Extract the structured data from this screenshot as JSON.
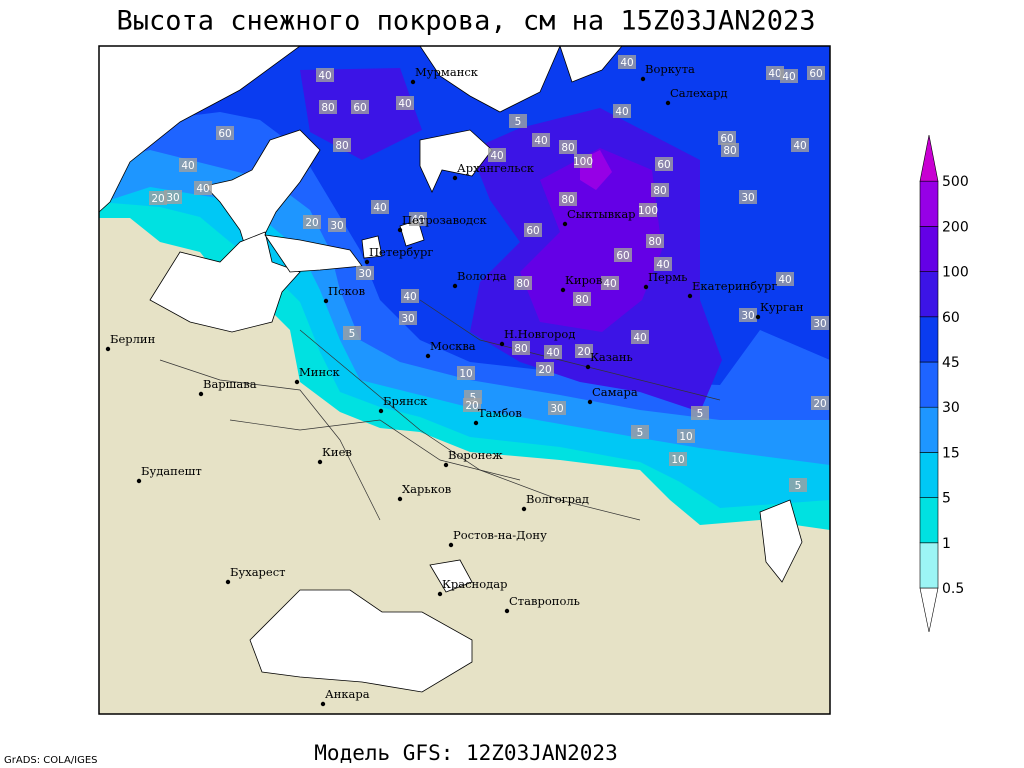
{
  "header": {
    "title": "Высота снежного покрова, см на 15Z03JAN2023"
  },
  "legend": {
    "levels": [
      0.5,
      1,
      5,
      15,
      30,
      45,
      60,
      100,
      200,
      500
    ],
    "colors": [
      "#ffffff",
      "#9cf5f5",
      "#00e1e1",
      "#00c8f5",
      "#1e96ff",
      "#1e64ff",
      "#0a3cf0",
      "#3c14e6",
      "#6400e6",
      "#9600e6",
      "#c800d2"
    ]
  },
  "cities": [
    "Мурманск",
    "Воркута",
    "Салехард",
    "Архангельск",
    "Сыктывкар",
    "Петрозаводск",
    "Петербург",
    "Вологда",
    "Киров",
    "Пермь",
    "Екатеринбург",
    "Курган",
    "Псков",
    "Берлин",
    "Н.Новгород",
    "Казань",
    "Москва",
    "Минск",
    "Варшава",
    "Брянск",
    "Тамбов",
    "Самара",
    "Киев",
    "Воронеж",
    "Будапешт",
    "Харьков",
    "Волгоград",
    "Ростов-на-Дону",
    "Бухарест",
    "Краснодар",
    "Ставрополь",
    "Анкара"
  ],
  "contour_labels": [
    40,
    40,
    40,
    40,
    60,
    80,
    60,
    40,
    60,
    80,
    40,
    40,
    20,
    30,
    5,
    40,
    80,
    100,
    40,
    40,
    60,
    80,
    40,
    60,
    80,
    30,
    80,
    100,
    40,
    20,
    30,
    40,
    60,
    80,
    60,
    40,
    30,
    40,
    80,
    80,
    40,
    40,
    30,
    30,
    30,
    5,
    40,
    80,
    40,
    20,
    20,
    10,
    5,
    20,
    30,
    5,
    10,
    5,
    10,
    5,
    20
  ],
  "footer": {
    "model": "Модель GFS: 12Z03JAN2023",
    "credit": "GrADS: COLA/IGES"
  }
}
